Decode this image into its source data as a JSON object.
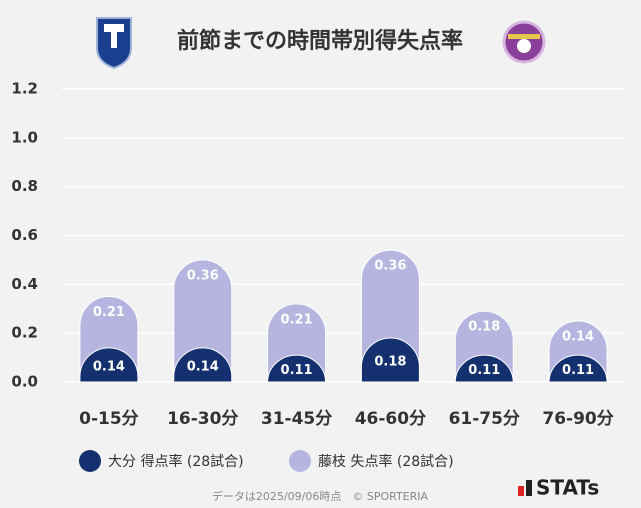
{
  "chart_data": {
    "type": "stacked_bar",
    "title": "前節までの時間帯別得失点率",
    "categories": [
      "0-15分",
      "16-30分",
      "31-45分",
      "46-60分",
      "61-75分",
      "76-90分"
    ],
    "series": [
      {
        "name": "大分 得点率 (28試合)",
        "color": "#14306e",
        "values": [
          0.14,
          0.14,
          0.11,
          0.18,
          0.11,
          0.11
        ]
      },
      {
        "name": "藤枝 失点率 (28試合)",
        "color": "#b5b5e0",
        "values": [
          0.21,
          0.36,
          0.21,
          0.36,
          0.18,
          0.14
        ]
      }
    ],
    "ylim": [
      0,
      1.2
    ],
    "yticks": [
      {
        "value": 0,
        "label": "0.0"
      },
      0.2,
      0.4,
      0.6,
      0.8,
      {
        "value": 1,
        "label": "1.0"
      },
      1.2
    ],
    "grid": true,
    "legend": "bottom"
  },
  "footer": {
    "note": "データは2025/09/06時点　© SPORTERIA",
    "brand": "STATs"
  }
}
